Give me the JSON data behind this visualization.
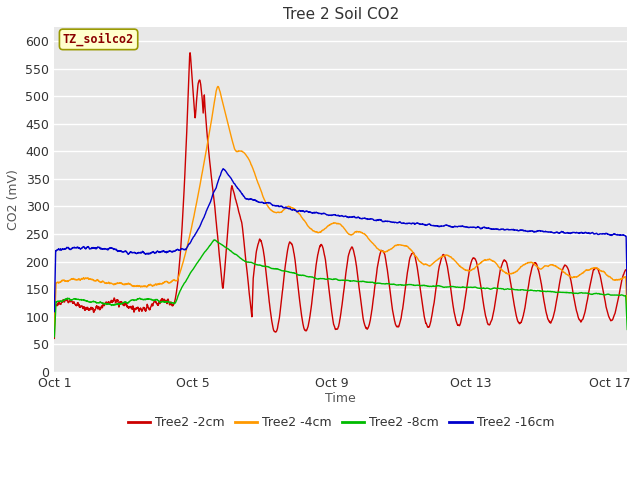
{
  "title": "Tree 2 Soil CO2",
  "xlabel": "Time",
  "ylabel": "CO2 (mV)",
  "legend_label": "TZ_soilco2",
  "series_labels": [
    "Tree2 -2cm",
    "Tree2 -4cm",
    "Tree2 -8cm",
    "Tree2 -16cm"
  ],
  "series_colors": [
    "#cc0000",
    "#ff9900",
    "#00bb00",
    "#0000cc"
  ],
  "xlim_days": [
    0,
    16.5
  ],
  "ylim": [
    0,
    625
  ],
  "yticks": [
    0,
    50,
    100,
    150,
    200,
    250,
    300,
    350,
    400,
    450,
    500,
    550,
    600
  ],
  "xtick_labels": [
    "Oct 1",
    "Oct 5",
    "Oct 9",
    "Oct 13",
    "Oct 17"
  ],
  "xtick_positions": [
    0,
    4,
    8,
    12,
    16
  ],
  "fig_bg_color": "#ffffff",
  "plot_bg_color": "#e8e8e8",
  "grid_color": "#ffffff",
  "title_fontsize": 11,
  "axis_label_fontsize": 9,
  "tick_fontsize": 9,
  "legend_fontsize": 9,
  "figsize": [
    6.4,
    4.8
  ],
  "dpi": 100
}
